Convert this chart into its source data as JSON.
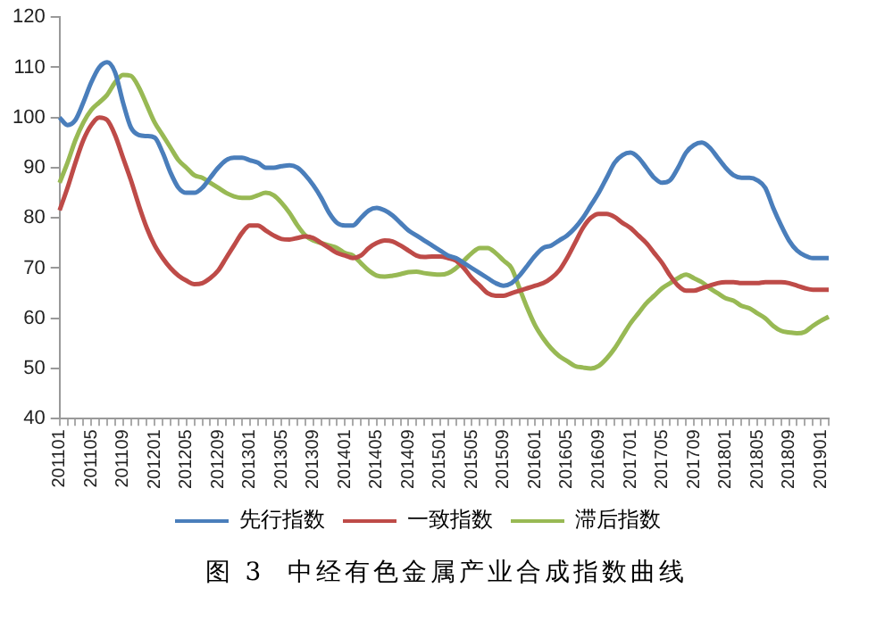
{
  "chart_data": {
    "type": "line",
    "categories": [
      "201101",
      null,
      null,
      null,
      "201105",
      null,
      null,
      null,
      "201109",
      null,
      null,
      null,
      "201201",
      null,
      null,
      null,
      "201205",
      null,
      null,
      null,
      "201209",
      null,
      null,
      null,
      "201301",
      null,
      null,
      null,
      "201305",
      null,
      null,
      null,
      "201309",
      null,
      null,
      null,
      "201401",
      null,
      null,
      null,
      "201405",
      null,
      null,
      null,
      "201409",
      null,
      null,
      null,
      "201501",
      null,
      null,
      null,
      "201505",
      null,
      null,
      null,
      "201509",
      null,
      null,
      null,
      "201601",
      null,
      null,
      null,
      "201605",
      null,
      null,
      null,
      "201609",
      null,
      null,
      null,
      "201701",
      null,
      null,
      null,
      "201705",
      null,
      null,
      null,
      "201709",
      null,
      null,
      null,
      "201801",
      null,
      null,
      null,
      "201805",
      null,
      null,
      null,
      "201809",
      null,
      null,
      null,
      "201901",
      null
    ],
    "series": [
      {
        "name": "先行指数",
        "color": "#4a7ebb",
        "values": [
          100,
          98.5,
          99.5,
          103,
          107,
          110,
          111,
          109,
          103,
          98,
          96.5,
          96.3,
          96,
          93,
          89,
          86,
          85,
          85,
          86,
          88,
          90,
          91.5,
          92,
          92,
          91.5,
          91,
          90,
          90,
          90.3,
          90.5,
          90,
          88.5,
          86.5,
          84,
          81,
          79,
          78.5,
          78.5,
          80,
          81.5,
          82,
          81.5,
          80.5,
          79,
          77.5,
          76.5,
          75.5,
          74.5,
          73.5,
          72.5,
          72,
          71,
          70,
          69,
          68,
          67,
          66.5,
          67,
          68.5,
          70.5,
          72.5,
          74,
          74.5,
          75.5,
          76.5,
          78,
          80,
          82.5,
          85,
          88,
          91,
          92.5,
          93,
          92,
          90,
          88,
          87,
          87.5,
          90,
          93,
          94.5,
          95,
          94,
          92,
          90,
          88.5,
          88,
          88,
          87.5,
          86,
          82,
          78.5,
          75.5,
          73.5,
          72.5,
          72,
          72,
          72
        ]
      },
      {
        "name": "一致指数",
        "color": "#be4b48",
        "values": [
          81.5,
          86,
          91,
          95.5,
          98.5,
          100,
          99.5,
          96.5,
          92,
          87.5,
          82.5,
          78,
          74.5,
          72,
          70,
          68.5,
          67.5,
          66.8,
          67,
          68,
          69.5,
          72,
          74.5,
          77,
          78.5,
          78.5,
          77.5,
          76.5,
          75.8,
          75.7,
          76,
          76.3,
          76,
          75,
          74,
          73,
          72.5,
          72,
          72.5,
          74,
          75,
          75.5,
          75.3,
          74.5,
          73.5,
          72.5,
          72.2,
          72.3,
          72.3,
          72,
          71.5,
          70,
          68,
          66.5,
          65,
          64.5,
          64.5,
          65,
          65.5,
          66,
          66.5,
          67,
          68,
          69.5,
          72,
          75,
          78,
          80,
          80.8,
          80.8,
          80.2,
          79,
          78,
          76.5,
          75,
          73,
          71,
          68.5,
          66.5,
          65.5,
          65.5,
          66,
          66.5,
          67,
          67.2,
          67.2,
          67,
          67,
          67,
          67.2,
          67.2,
          67.2,
          67,
          66.5,
          66,
          65.7,
          65.7,
          65.7
        ]
      },
      {
        "name": "滞后指数",
        "color": "#98b954",
        "values": [
          87,
          91,
          95.5,
          99,
          101.5,
          103,
          104.5,
          107,
          108.5,
          108.3,
          106,
          102.5,
          99,
          96.5,
          94,
          91.5,
          90,
          88.5,
          88,
          87,
          86,
          85,
          84.3,
          84,
          84,
          84.5,
          85,
          84.5,
          83,
          81,
          78.5,
          76.5,
          75.5,
          75,
          74.5,
          74,
          73,
          72.5,
          71,
          69.5,
          68.5,
          68.3,
          68.5,
          68.8,
          69.2,
          69.3,
          69,
          68.8,
          68.7,
          69,
          70,
          71.5,
          73,
          74,
          74,
          73,
          71.5,
          70,
          66,
          62,
          58.5,
          56,
          54,
          52.5,
          51.5,
          50.5,
          50.2,
          50,
          50.5,
          52,
          54,
          56.5,
          59,
          61,
          63,
          64.5,
          66,
          67,
          68,
          68.7,
          68,
          67.2,
          66,
          65,
          64,
          63.5,
          62.5,
          62,
          61,
          60,
          58.5,
          57.5,
          57.2,
          57,
          57.3,
          58.5,
          59.5,
          60.3
        ]
      }
    ],
    "ylim": [
      40,
      120
    ],
    "yticks": [
      40,
      50,
      60,
      70,
      80,
      90,
      100,
      110,
      120
    ],
    "grid": false,
    "legend": "bottom",
    "marker": "none",
    "line_style": "solid",
    "annotations": [
      "图 3  中经有色金属产业合成指数曲线"
    ]
  }
}
